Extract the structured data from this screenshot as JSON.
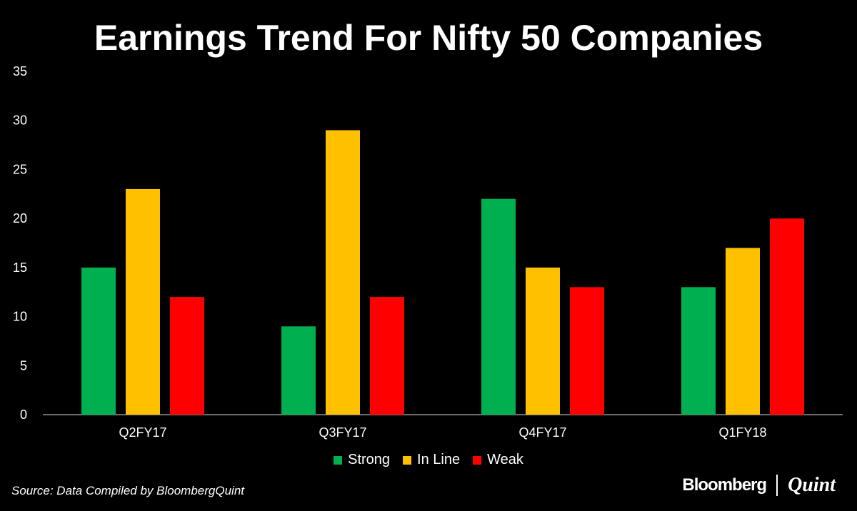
{
  "chart_data": {
    "type": "bar",
    "title": "Earnings Trend For Nifty 50 Companies",
    "categories": [
      "Q2FY17",
      "Q3FY17",
      "Q4FY17",
      "Q1FY18"
    ],
    "series": [
      {
        "name": "Strong",
        "color": "#00b050",
        "values": [
          15,
          9,
          22,
          13
        ]
      },
      {
        "name": "In Line",
        "color": "#ffc000",
        "values": [
          23,
          29,
          15,
          17
        ]
      },
      {
        "name": "Weak",
        "color": "#ff0000",
        "values": [
          12,
          12,
          13,
          20
        ]
      }
    ],
    "yticks": [
      "0",
      "5",
      "10",
      "15",
      "20",
      "25",
      "30",
      "35"
    ],
    "ylim": [
      0,
      35
    ],
    "xlabel": "",
    "ylabel": "",
    "grid": false,
    "legend": "bottom"
  },
  "source": "Source: Data Compiled by BloombergQuint",
  "logo": {
    "left": "Bloomberg",
    "right": "Quint"
  }
}
